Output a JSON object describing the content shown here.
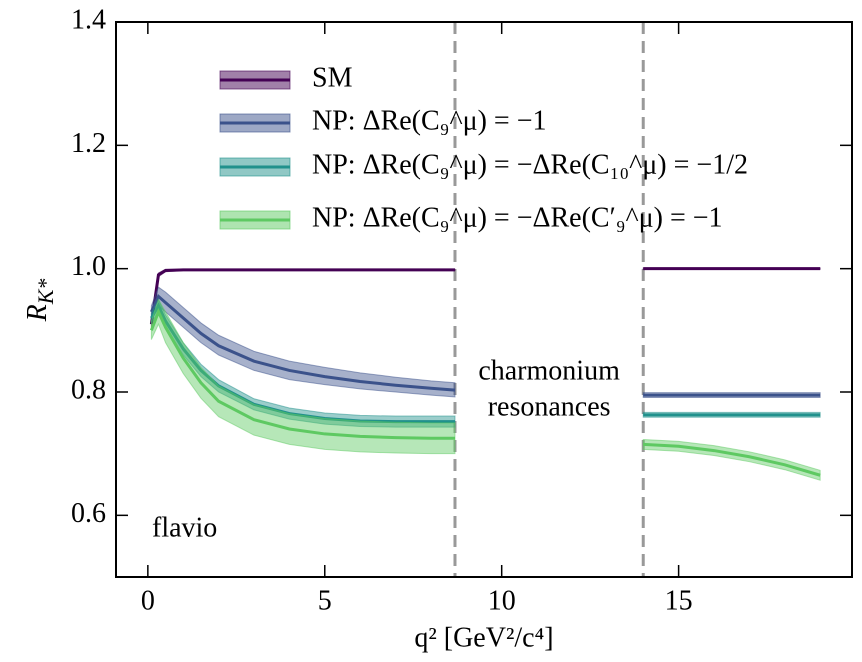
{
  "chart_data": {
    "type": "line",
    "xlabel": "q² [GeV²/c⁴]",
    "ylabel": {
      "main": "R",
      "sub": "K*"
    },
    "xlim": [
      -0.9,
      19.9
    ],
    "ylim": [
      0.5,
      1.4
    ],
    "xticks": [
      0,
      5,
      10,
      15
    ],
    "yticks": [
      0.6,
      0.8,
      {
        "value": 1,
        "label": "1.0"
      },
      1.2,
      1.4
    ],
    "x": [
      0.1,
      0.3,
      0.5,
      1,
      1.5,
      2,
      3,
      4,
      5,
      6,
      7,
      8,
      8.68,
      11,
      14,
      15,
      16,
      17,
      18,
      19
    ],
    "series": [
      {
        "name": "SM",
        "color": "#440154",
        "values": [
          0.91,
          0.99,
          0.997,
          0.998,
          0.998,
          0.998,
          0.998,
          0.998,
          0.998,
          0.998,
          0.998,
          0.998,
          0.998,
          null,
          1,
          1,
          1,
          1,
          1,
          1
        ],
        "lower": [
          0.905,
          0.987,
          0.995,
          0.997,
          0.997,
          0.997,
          0.997,
          0.997,
          0.997,
          0.997,
          0.997,
          0.997,
          0.997,
          null,
          0.999,
          0.999,
          0.999,
          0.999,
          0.999,
          0.999
        ],
        "upper": [
          0.915,
          0.993,
          0.999,
          0.999,
          0.999,
          0.999,
          0.999,
          0.999,
          0.999,
          0.999,
          0.999,
          0.999,
          0.999,
          null,
          1.001,
          1.001,
          1.001,
          1.001,
          1.001,
          1.001
        ]
      },
      {
        "name": "NP: ΔRe(C₉^μ) = −1",
        "color": "#3b528b",
        "values": [
          0.93,
          0.955,
          0.945,
          0.92,
          0.895,
          0.875,
          0.85,
          0.835,
          0.825,
          0.817,
          0.811,
          0.806,
          0.803,
          null,
          0.795,
          0.795,
          0.795,
          0.795,
          0.795,
          0.795
        ],
        "lower": [
          0.92,
          0.94,
          0.93,
          0.905,
          0.88,
          0.86,
          0.835,
          0.82,
          0.812,
          0.805,
          0.8,
          0.795,
          0.792,
          null,
          0.791,
          0.791,
          0.791,
          0.791,
          0.791,
          0.791
        ],
        "upper": [
          0.94,
          0.97,
          0.962,
          0.937,
          0.912,
          0.892,
          0.866,
          0.85,
          0.84,
          0.831,
          0.824,
          0.818,
          0.815,
          null,
          0.799,
          0.799,
          0.799,
          0.799,
          0.799,
          0.799
        ]
      },
      {
        "name": "NP: ΔRe(C₉^μ) = −ΔRe(C₁₀^μ) = −1/2",
        "color": "#21918c",
        "values": [
          0.92,
          0.94,
          0.915,
          0.87,
          0.835,
          0.81,
          0.78,
          0.765,
          0.757,
          0.753,
          0.752,
          0.752,
          0.752,
          null,
          0.763,
          0.763,
          0.763,
          0.763,
          0.763,
          0.763
        ],
        "lower": [
          0.912,
          0.93,
          0.905,
          0.86,
          0.825,
          0.8,
          0.771,
          0.756,
          0.748,
          0.744,
          0.743,
          0.743,
          0.743,
          null,
          0.759,
          0.759,
          0.759,
          0.759,
          0.759,
          0.759
        ],
        "upper": [
          0.928,
          0.95,
          0.925,
          0.88,
          0.845,
          0.82,
          0.789,
          0.774,
          0.766,
          0.762,
          0.761,
          0.761,
          0.761,
          null,
          0.767,
          0.767,
          0.767,
          0.767,
          0.767,
          0.767
        ]
      },
      {
        "name": "NP: ΔRe(C₉^μ) = −ΔRe(C′₉^μ) = −1",
        "color": "#5ec962",
        "values": [
          0.9,
          0.93,
          0.905,
          0.855,
          0.815,
          0.785,
          0.755,
          0.74,
          0.732,
          0.728,
          0.726,
          0.725,
          0.725,
          null,
          0.715,
          0.712,
          0.705,
          0.695,
          0.682,
          0.665
        ],
        "lower": [
          0.885,
          0.91,
          0.88,
          0.83,
          0.79,
          0.76,
          0.73,
          0.715,
          0.707,
          0.703,
          0.701,
          0.7,
          0.7,
          null,
          0.707,
          0.704,
          0.697,
          0.687,
          0.674,
          0.657
        ],
        "upper": [
          0.915,
          0.95,
          0.93,
          0.88,
          0.84,
          0.81,
          0.78,
          0.765,
          0.757,
          0.753,
          0.751,
          0.75,
          0.75,
          null,
          0.723,
          0.72,
          0.713,
          0.703,
          0.69,
          0.673
        ]
      }
    ],
    "vlines": [
      8.68,
      14
    ],
    "annotations": {
      "region": [
        "charmonium",
        "resonances"
      ],
      "watermark": "flavio"
    }
  }
}
